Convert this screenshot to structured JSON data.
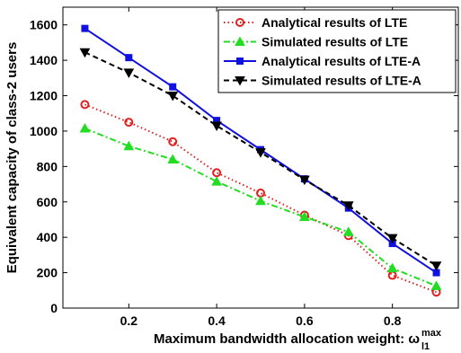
{
  "chart_data": {
    "type": "line",
    "title": "",
    "xlabel": "Maximum bandwidth allocation weight: ω",
    "xlabel_sub": "l1",
    "xlabel_sup": "max",
    "ylabel": "Equivalent capacity of class-2 users",
    "xlim": [
      0.05,
      0.95
    ],
    "ylim": [
      0,
      1700
    ],
    "x_ticks": [
      0.2,
      0.4,
      0.6,
      0.8
    ],
    "y_ticks": [
      0,
      200,
      400,
      600,
      800,
      1000,
      1200,
      1400,
      1600
    ],
    "x_tick_labels": [
      "0.2",
      "0.4",
      "0.6",
      "0.8"
    ],
    "y_tick_labels": [
      "0",
      "200",
      "400",
      "600",
      "800",
      "1000",
      "1200",
      "1400",
      "1600"
    ],
    "x": [
      0.1,
      0.2,
      0.3,
      0.4,
      0.5,
      0.6,
      0.7,
      0.8,
      0.9
    ],
    "grid": false,
    "legend_position": "top-right",
    "series": [
      {
        "name": "Analytical results of LTE",
        "values": [
          1150,
          1050,
          940,
          765,
          650,
          525,
          410,
          185,
          90
        ],
        "color": "#e02020",
        "line_style": "dotted",
        "marker": "circle"
      },
      {
        "name": "Simulated results of LTE",
        "values": [
          1015,
          915,
          840,
          715,
          605,
          515,
          430,
          225,
          125
        ],
        "color": "#22dd22",
        "line_style": "dashdot",
        "marker": "triangle-up"
      },
      {
        "name": "Analytical results of LTE-A",
        "values": [
          1580,
          1415,
          1250,
          1060,
          895,
          730,
          565,
          365,
          200
        ],
        "color": "#1010e0",
        "line_style": "solid",
        "marker": "square"
      },
      {
        "name": "Simulated results of LTE-A",
        "values": [
          1445,
          1330,
          1200,
          1030,
          880,
          725,
          580,
          395,
          240
        ],
        "color": "#000000",
        "line_style": "dashed",
        "marker": "triangle-down"
      }
    ]
  }
}
